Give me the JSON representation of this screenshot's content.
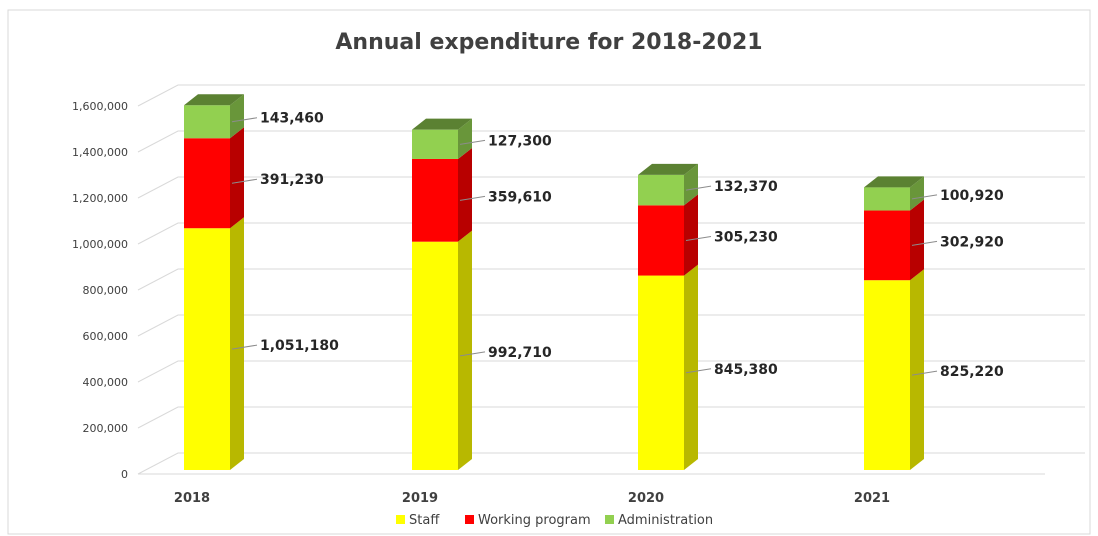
{
  "chart_data": {
    "type": "bar",
    "stacked": true,
    "three_d": true,
    "title": "Annual expenditure for 2018-2021",
    "categories": [
      "2018",
      "2019",
      "2020",
      "2021"
    ],
    "series": [
      {
        "name": "Staff",
        "values": [
          1051180,
          992710,
          845380,
          825220
        ],
        "color": "#ffff00",
        "labels": [
          "1,051,180",
          "992,710",
          "845,380",
          "825,220"
        ]
      },
      {
        "name": "Working program",
        "values": [
          391230,
          359610,
          305230,
          302920
        ],
        "color": "#ff0000",
        "labels": [
          "391,230",
          "359,610",
          "305,230",
          "302,920"
        ]
      },
      {
        "name": "Administration",
        "values": [
          143460,
          127300,
          132370,
          100920
        ],
        "color": "#92d050",
        "labels": [
          "143,460",
          "127,300",
          "132,370",
          "100,920"
        ]
      }
    ],
    "ylim": [
      0,
      1600000
    ],
    "yticks": [
      0,
      200000,
      400000,
      600000,
      800000,
      1000000,
      1200000,
      1400000,
      1600000
    ],
    "ytick_labels": [
      "0",
      "200,000",
      "400,000",
      "600,000",
      "800,000",
      "1,000,000",
      "1,200,000",
      "1,400,000",
      "1,600,000"
    ],
    "grid": true,
    "legend_position": "bottom"
  }
}
